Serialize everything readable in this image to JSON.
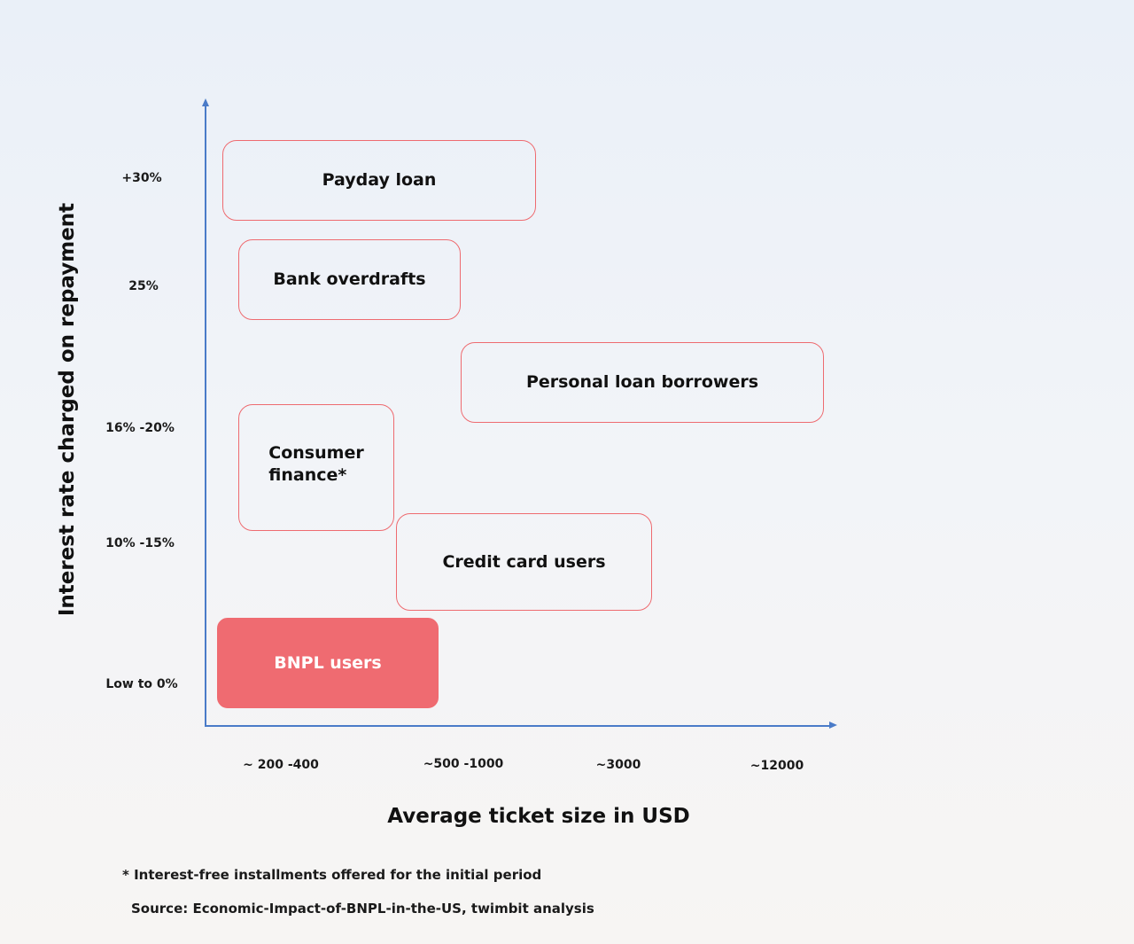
{
  "y_axis": {
    "title": "Interest rate charged on repayment",
    "ticks": [
      "+30%",
      "25%",
      "16% -20%",
      "10% -15%",
      "Low to 0%"
    ]
  },
  "x_axis": {
    "title": "Average ticket size in USD",
    "ticks": [
      "~ 200 -400",
      "~500 -1000",
      "~3000",
      "~12000"
    ]
  },
  "segments": [
    {
      "label": "Payday loan",
      "highlighted": false
    },
    {
      "label": "Bank overdrafts",
      "highlighted": false
    },
    {
      "label": "Personal loan borrowers",
      "highlighted": false
    },
    {
      "label": "Consumer\nfinance*",
      "highlighted": false
    },
    {
      "label": "Credit card users",
      "highlighted": false
    },
    {
      "label": "BNPL users",
      "highlighted": true
    }
  ],
  "colors": {
    "accent": "#ef6b71",
    "axis": "#4a7bc8"
  },
  "footnote": "* Interest-free installments offered for the initial period",
  "source": "Source: Economic-Impact-of-BNPL-in-the-US, twimbit analysis"
}
